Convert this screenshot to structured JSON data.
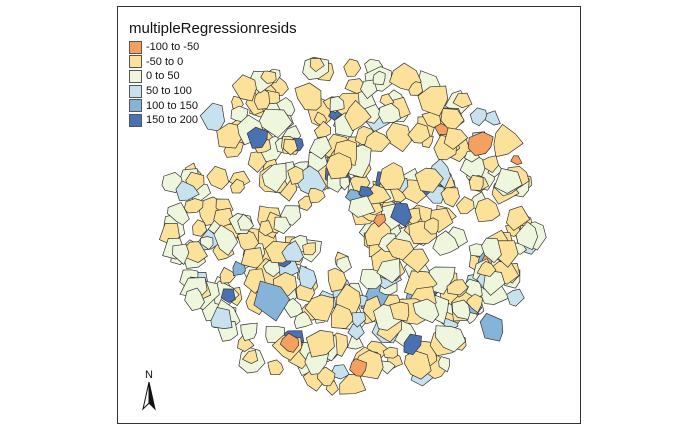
{
  "legend": {
    "title": "multipleRegressionresids",
    "classes": [
      {
        "label": "-100 to -50",
        "color": "#F4A05E"
      },
      {
        "label": "-50 to 0",
        "color": "#FCE19A"
      },
      {
        "label": "0 to 50",
        "color": "#EFF6DE"
      },
      {
        "label": "50 to 100",
        "color": "#C7E2EE"
      },
      {
        "label": "100 to 150",
        "color": "#86B3D8"
      },
      {
        "label": "150 to 200",
        "color": "#4A72B2"
      }
    ]
  },
  "north_arrow": {
    "label": "N"
  },
  "colors": {
    "border": "#333333",
    "background": "#FFFFFF"
  }
}
